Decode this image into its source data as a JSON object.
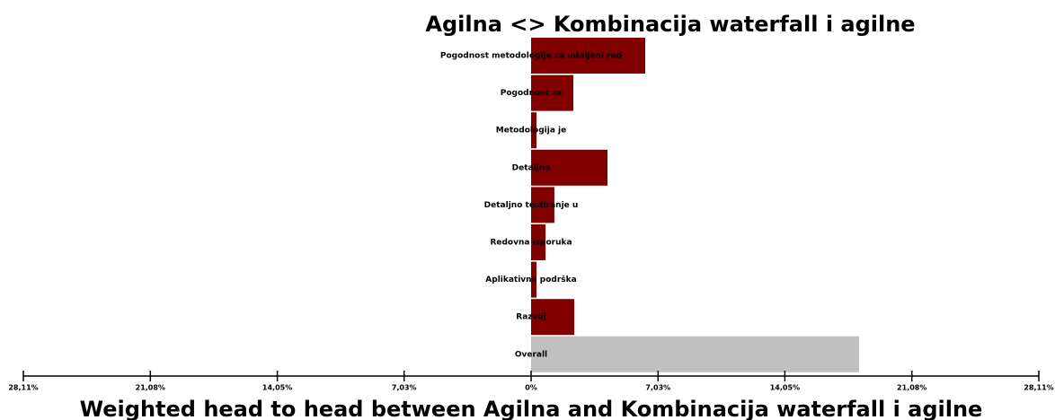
{
  "chart_data": {
    "type": "hbar",
    "title": "Agilna <> Kombinacija waterfall i agilne",
    "x_label": "Weighted head to head between Agilna and Kombinacija waterfall i agilne",
    "categories": [
      "Pogodnost metodologije za udaljeni rad",
      "Pogodnost za",
      "Metodologija je",
      "Detaljno",
      "Detaljno testiranje u",
      "Redovna isporuka",
      "Aplikativna podrška",
      "Razvoj",
      "Overall"
    ],
    "values": [
      6.32,
      2.34,
      0.3,
      4.23,
      1.29,
      0.8,
      0.3,
      2.39,
      18.16
    ],
    "colors": [
      "#800000",
      "#800000",
      "#800000",
      "#800000",
      "#800000",
      "#800000",
      "#800000",
      "#800000",
      "#c0c0c0"
    ],
    "xlim": [
      -28.11,
      28.11
    ],
    "xticks": [
      {
        "value": -28.11,
        "label": "28,11%"
      },
      {
        "value": -21.08,
        "label": "21,08%"
      },
      {
        "value": -14.05,
        "label": "14,05%"
      },
      {
        "value": -7.03,
        "label": "7,03%"
      },
      {
        "value": 0,
        "label": "0%"
      },
      {
        "value": 7.03,
        "label": "7,03%"
      },
      {
        "value": 14.05,
        "label": "14,05%"
      },
      {
        "value": 21.08,
        "label": "21,08%"
      },
      {
        "value": 28.11,
        "label": "28,11%"
      }
    ]
  }
}
